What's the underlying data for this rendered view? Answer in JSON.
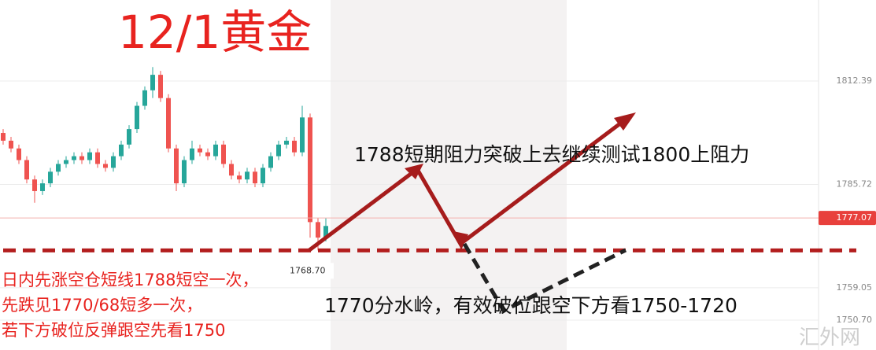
{
  "chart_data": {
    "type": "candlestick",
    "title": "12/1黄金",
    "series": {
      "open": [
        1799,
        1797,
        1795,
        1792,
        1787,
        1784,
        1786,
        1789,
        1791,
        1792,
        1793,
        1792,
        1794,
        1791,
        1790,
        1793,
        1796,
        1800,
        1806,
        1810,
        1814,
        1808,
        1795,
        1786,
        1792,
        1795,
        1794,
        1793,
        1796,
        1791,
        1788,
        1787,
        1789,
        1786,
        1790,
        1793,
        1796,
        1797,
        1794,
        1803,
        1776,
        1772
      ],
      "high": [
        1800,
        1798,
        1796,
        1793,
        1788,
        1787,
        1790,
        1792,
        1793,
        1794,
        1794,
        1795,
        1795,
        1792,
        1794,
        1797,
        1801,
        1807,
        1811,
        1816,
        1815,
        1809,
        1796,
        1793,
        1797,
        1796,
        1795,
        1797,
        1797,
        1792,
        1789,
        1790,
        1790,
        1791,
        1794,
        1797,
        1798,
        1798,
        1806,
        1804,
        1777,
        1777
      ],
      "low": [
        1796,
        1794,
        1791,
        1786,
        1781,
        1783,
        1785,
        1788,
        1790,
        1791,
        1791,
        1791,
        1790,
        1789,
        1789,
        1792,
        1795,
        1799,
        1805,
        1808,
        1807,
        1794,
        1784,
        1785,
        1791,
        1793,
        1792,
        1792,
        1790,
        1787,
        1786,
        1786,
        1785,
        1785,
        1789,
        1792,
        1795,
        1793,
        1793,
        1772,
        1768.7,
        1771
      ],
      "close": [
        1797,
        1795,
        1792,
        1787,
        1784,
        1786,
        1789,
        1791,
        1792,
        1793,
        1792,
        1794,
        1791,
        1790,
        1793,
        1796,
        1800,
        1806,
        1810,
        1814,
        1808,
        1795,
        1786,
        1792,
        1795,
        1794,
        1793,
        1796,
        1791,
        1788,
        1787,
        1789,
        1786,
        1790,
        1793,
        1796,
        1797,
        1794,
        1803,
        1776,
        1772,
        1775
      ],
      "up_color": "#26a69a",
      "down_color": "#ef5350"
    },
    "ylim": [
      1743,
      1833.3
    ],
    "yticks": [
      1812.39,
      1785.72,
      1759.05,
      {
        "value": 1750.7,
        "label": "1750.70"
      }
    ],
    "current_price": 1777.07,
    "support": {
      "value": 1768.7,
      "label": "1768.70"
    },
    "grid": true,
    "annotations": {
      "resistance": "1788短期阻力突破上去继续测试1800上阻力",
      "pivot": "1770分水岭，有效破位跟空下方看1750-1720",
      "strategy": [
        "日内先涨空仓短线1788短空一次，",
        "先跌见1770/68短多一次，",
        "若下方破位反弹跟空先看1750"
      ]
    },
    "watermark": "汇外网"
  }
}
